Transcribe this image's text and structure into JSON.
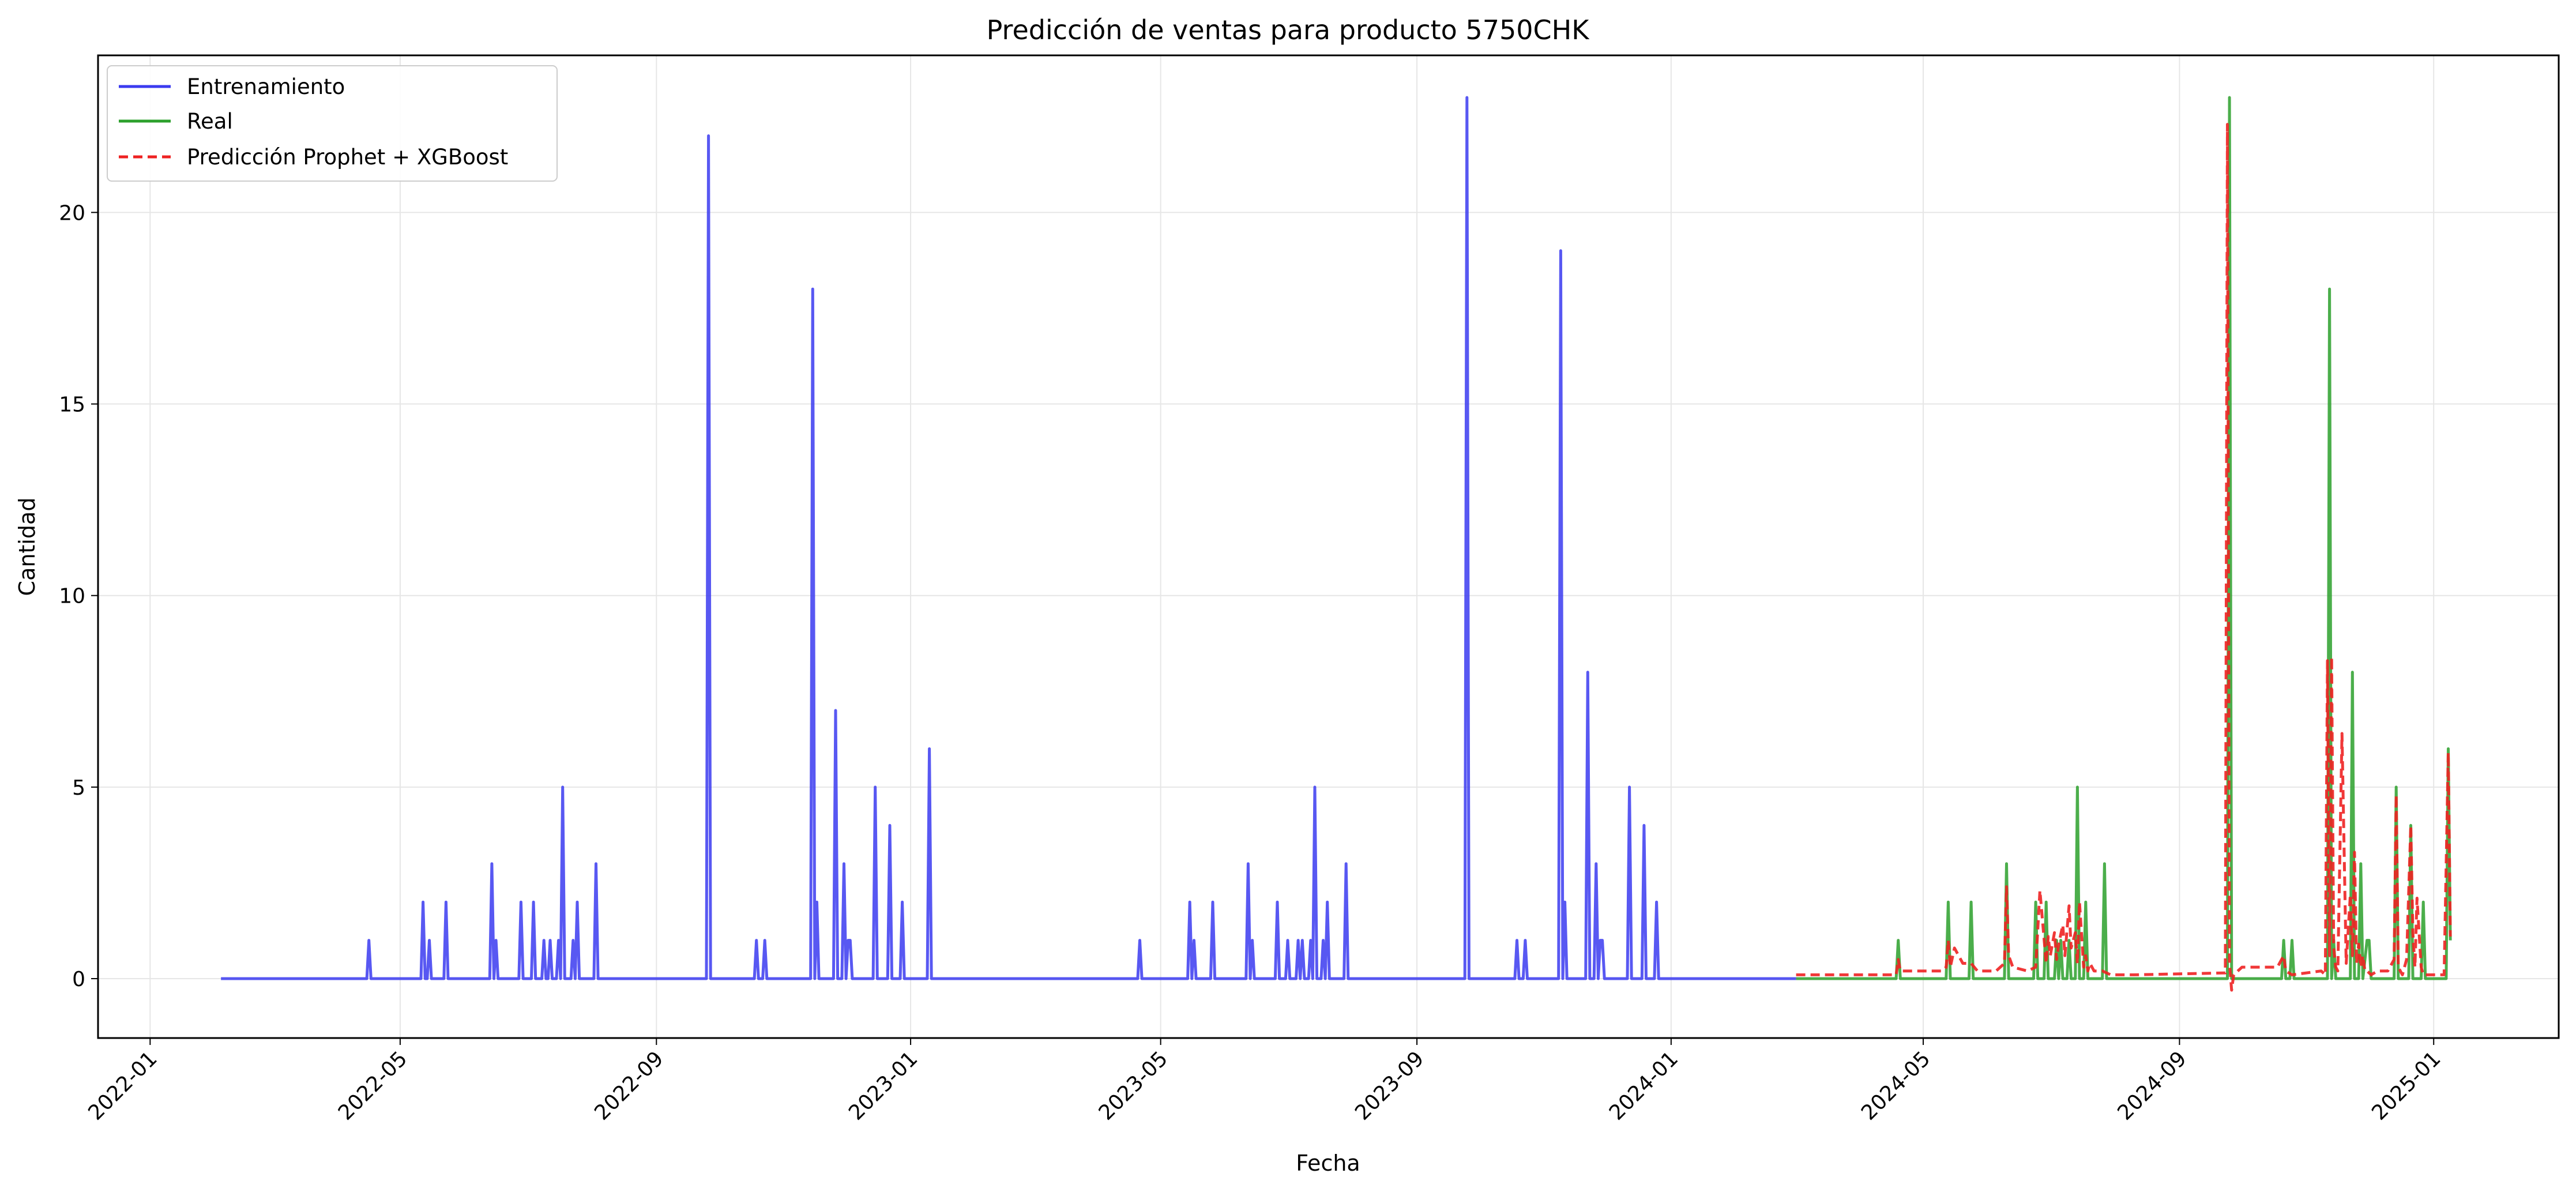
{
  "chart_data": {
    "type": "line",
    "title": "Predicción de ventas para producto 5750CHK",
    "xlabel": "Fecha",
    "ylabel": "Cantidad",
    "x_axis": "date",
    "xlim": [
      "2021-12-07",
      "2025-03-02"
    ],
    "ylim": [
      -1.55,
      24.1
    ],
    "x_ticks": [
      "2022-01",
      "2022-05",
      "2022-09",
      "2023-01",
      "2023-05",
      "2023-09",
      "2024-01",
      "2024-05",
      "2024-09",
      "2025-01"
    ],
    "y_ticks": [
      0,
      5,
      10,
      15,
      20
    ],
    "grid": true,
    "legend_position": "top-left",
    "series": [
      {
        "name": "Entrenamiento",
        "color": "#3b3bf0",
        "style": "solid",
        "x": [
          "2022-02-04",
          "2022-04-15",
          "2022-04-16",
          "2022-04-17",
          "2022-05-11",
          "2022-05-12",
          "2022-05-13",
          "2022-05-14",
          "2022-05-15",
          "2022-05-16",
          "2022-05-17",
          "2022-05-22",
          "2022-05-23",
          "2022-05-24",
          "2022-06-13",
          "2022-06-14",
          "2022-06-15",
          "2022-06-16",
          "2022-06-17",
          "2022-06-27",
          "2022-06-28",
          "2022-06-29",
          "2022-07-03",
          "2022-07-04",
          "2022-07-05",
          "2022-07-08",
          "2022-07-09",
          "2022-07-10",
          "2022-07-11",
          "2022-07-12",
          "2022-07-13",
          "2022-07-15",
          "2022-07-16",
          "2022-07-17",
          "2022-07-18",
          "2022-07-19",
          "2022-07-20",
          "2022-07-22",
          "2022-07-23",
          "2022-07-24",
          "2022-07-25",
          "2022-07-26",
          "2022-08-02",
          "2022-08-03",
          "2022-08-04",
          "2022-09-25",
          "2022-09-26",
          "2022-09-27",
          "2022-10-18",
          "2022-10-19",
          "2022-10-20",
          "2022-10-22",
          "2022-10-23",
          "2022-10-24",
          "2022-11-14",
          "2022-11-15",
          "2022-11-16",
          "2022-11-17",
          "2022-11-18",
          "2022-11-25",
          "2022-11-26",
          "2022-11-27",
          "2022-11-29",
          "2022-11-30",
          "2022-12-01",
          "2022-12-02",
          "2022-12-03",
          "2022-12-04",
          "2022-12-14",
          "2022-12-15",
          "2022-12-16",
          "2022-12-21",
          "2022-12-22",
          "2022-12-23",
          "2022-12-27",
          "2022-12-28",
          "2022-12-29",
          "2023-01-09",
          "2023-01-10",
          "2023-01-11",
          "2023-04-20",
          "2023-04-21",
          "2023-04-22",
          "2023-05-14",
          "2023-05-15",
          "2023-05-16",
          "2023-05-17",
          "2023-05-18",
          "2023-05-25",
          "2023-05-26",
          "2023-05-27",
          "2023-06-11",
          "2023-06-12",
          "2023-06-13",
          "2023-06-14",
          "2023-06-15",
          "2023-06-25",
          "2023-06-26",
          "2023-06-27",
          "2023-06-30",
          "2023-07-01",
          "2023-07-02",
          "2023-07-05",
          "2023-07-06",
          "2023-07-07",
          "2023-07-08",
          "2023-07-09",
          "2023-07-11",
          "2023-07-12",
          "2023-07-13",
          "2023-07-14",
          "2023-07-15",
          "2023-07-17",
          "2023-07-18",
          "2023-07-19",
          "2023-07-20",
          "2023-07-21",
          "2023-07-28",
          "2023-07-29",
          "2023-07-30",
          "2023-09-24",
          "2023-09-25",
          "2023-09-26",
          "2023-10-18",
          "2023-10-19",
          "2023-10-20",
          "2023-10-22",
          "2023-10-23",
          "2023-10-24",
          "2023-11-08",
          "2023-11-09",
          "2023-11-10",
          "2023-11-11",
          "2023-11-12",
          "2023-11-21",
          "2023-11-22",
          "2023-11-23",
          "2023-11-25",
          "2023-11-26",
          "2023-11-27",
          "2023-11-28",
          "2023-11-29",
          "2023-11-30",
          "2023-12-11",
          "2023-12-12",
          "2023-12-13",
          "2023-12-18",
          "2023-12-19",
          "2023-12-20",
          "2023-12-24",
          "2023-12-25",
          "2023-12-26",
          "2024-03-01"
        ],
        "y": [
          0,
          0,
          1,
          0,
          0,
          2,
          0,
          0,
          1,
          0,
          0,
          0,
          2,
          0,
          0,
          3,
          0,
          1,
          0,
          0,
          2,
          0,
          0,
          2,
          0,
          0,
          1,
          0,
          0,
          1,
          0,
          0,
          1,
          0,
          5,
          0,
          0,
          0,
          1,
          0,
          2,
          0,
          0,
          3,
          0,
          0,
          22,
          0,
          0,
          1,
          0,
          0,
          1,
          0,
          0,
          18,
          0,
          2,
          0,
          0,
          7,
          0,
          0,
          3,
          0,
          1,
          1,
          0,
          0,
          5,
          0,
          0,
          4,
          0,
          0,
          2,
          0,
          0,
          6,
          0,
          0,
          1,
          0,
          0,
          2,
          0,
          1,
          0,
          0,
          2,
          0,
          0,
          3,
          0,
          1,
          0,
          0,
          2,
          0,
          0,
          1,
          0,
          0,
          1,
          0,
          1,
          0,
          0,
          1,
          0,
          5,
          0,
          0,
          1,
          0,
          2,
          0,
          0,
          3,
          0,
          0,
          23,
          0,
          0,
          1,
          0,
          0,
          1,
          0,
          0,
          19,
          0,
          2,
          0,
          0,
          8,
          0,
          0,
          3,
          0,
          1,
          1,
          0,
          0,
          5,
          0,
          0,
          4,
          0,
          0,
          2,
          0,
          0
        ]
      },
      {
        "name": "Real",
        "color": "#2ca02c",
        "style": "solid",
        "x": [
          "2024-03-01",
          "2024-04-18",
          "2024-04-19",
          "2024-04-20",
          "2024-05-12",
          "2024-05-13",
          "2024-05-14",
          "2024-05-23",
          "2024-05-24",
          "2024-05-25",
          "2024-06-09",
          "2024-06-10",
          "2024-06-11",
          "2024-06-23",
          "2024-06-24",
          "2024-06-25",
          "2024-06-28",
          "2024-06-29",
          "2024-06-30",
          "2024-07-03",
          "2024-07-04",
          "2024-07-05",
          "2024-07-06",
          "2024-07-07",
          "2024-07-09",
          "2024-07-10",
          "2024-07-11",
          "2024-07-13",
          "2024-07-14",
          "2024-07-15",
          "2024-07-17",
          "2024-07-18",
          "2024-07-19",
          "2024-07-26",
          "2024-07-27",
          "2024-07-28",
          "2024-09-24",
          "2024-09-25",
          "2024-09-26",
          "2024-10-20",
          "2024-10-21",
          "2024-10-22",
          "2024-10-24",
          "2024-10-25",
          "2024-10-26",
          "2024-11-11",
          "2024-11-12",
          "2024-11-13",
          "2024-11-14",
          "2024-11-15",
          "2024-11-22",
          "2024-11-23",
          "2024-11-24",
          "2024-11-26",
          "2024-11-27",
          "2024-11-28",
          "2024-11-30",
          "2024-12-01",
          "2024-12-02",
          "2024-12-13",
          "2024-12-14",
          "2024-12-15",
          "2024-12-20",
          "2024-12-21",
          "2024-12-22",
          "2024-12-26",
          "2024-12-27",
          "2024-12-28",
          "2025-01-07",
          "2025-01-08",
          "2025-01-09"
        ],
        "y": [
          0,
          0,
          1,
          0,
          0,
          2,
          0,
          0,
          2,
          0,
          0,
          3,
          0,
          0,
          2,
          0,
          0,
          2,
          0,
          0,
          1,
          0,
          1,
          0,
          0,
          1,
          0,
          0,
          5,
          0,
          0,
          2,
          0,
          0,
          3,
          0,
          0,
          23,
          0,
          0,
          1,
          0,
          0,
          1,
          0,
          0,
          18,
          0,
          1,
          0,
          0,
          8,
          0,
          0,
          3,
          0,
          1,
          1,
          0,
          0,
          5,
          0,
          0,
          4,
          0,
          0,
          2,
          0,
          0,
          6,
          1
        ]
      },
      {
        "name": "Predicción Prophet + XGBoost",
        "color": "#ee2222",
        "style": "dashed",
        "x": [
          "2024-03-01",
          "2024-04-18",
          "2024-04-19",
          "2024-04-20",
          "2024-05-10",
          "2024-05-12",
          "2024-05-13",
          "2024-05-14",
          "2024-05-16",
          "2024-05-20",
          "2024-05-24",
          "2024-05-27",
          "2024-06-05",
          "2024-06-09",
          "2024-06-10",
          "2024-06-11",
          "2024-06-13",
          "2024-06-20",
          "2024-06-24",
          "2024-06-26",
          "2024-06-29",
          "2024-06-30",
          "2024-07-01",
          "2024-07-03",
          "2024-07-04",
          "2024-07-05",
          "2024-07-07",
          "2024-07-08",
          "2024-07-10",
          "2024-07-11",
          "2024-07-13",
          "2024-07-14",
          "2024-07-15",
          "2024-07-17",
          "2024-07-18",
          "2024-07-19",
          "2024-07-20",
          "2024-07-22",
          "2024-07-26",
          "2024-07-30",
          "2024-08-10",
          "2024-09-23",
          "2024-09-24",
          "2024-09-25",
          "2024-09-26",
          "2024-09-27",
          "2024-10-01",
          "2024-10-04",
          "2024-10-18",
          "2024-10-21",
          "2024-10-22",
          "2024-10-25",
          "2024-11-08",
          "2024-11-10",
          "2024-11-11",
          "2024-11-12",
          "2024-11-13",
          "2024-11-14",
          "2024-11-15",
          "2024-11-16",
          "2024-11-18",
          "2024-11-20",
          "2024-11-22",
          "2024-11-23",
          "2024-11-24",
          "2024-11-25",
          "2024-11-26",
          "2024-11-27",
          "2024-11-28",
          "2024-11-29",
          "2024-11-30",
          "2024-12-02",
          "2024-12-05",
          "2024-12-10",
          "2024-12-13",
          "2024-12-14",
          "2024-12-15",
          "2024-12-17",
          "2024-12-19",
          "2024-12-21",
          "2024-12-22",
          "2024-12-23",
          "2024-12-24",
          "2024-12-26",
          "2024-12-27",
          "2024-12-28",
          "2024-12-30",
          "2025-01-06",
          "2025-01-08",
          "2025-01-09"
        ],
        "y": [
          0.1,
          0.1,
          0.5,
          0.2,
          0.2,
          0.3,
          1.0,
          0.3,
          0.8,
          0.4,
          0.4,
          0.2,
          0.2,
          0.4,
          2.4,
          0.6,
          0.3,
          0.2,
          0.3,
          2.3,
          0.4,
          1.1,
          0.6,
          1.2,
          0.5,
          0.9,
          1.4,
          0.6,
          1.9,
          0.8,
          1.2,
          0.4,
          2.0,
          0.3,
          0.6,
          0.2,
          0.4,
          0.2,
          0.2,
          0.1,
          0.1,
          0.15,
          22.3,
          0.4,
          -0.3,
          0.1,
          0.3,
          0.3,
          0.3,
          0.6,
          0.2,
          0.1,
          0.2,
          0.1,
          8.3,
          0.6,
          8.4,
          0.8,
          0.3,
          0.2,
          6.4,
          0.4,
          2.2,
          0.6,
          3.3,
          0.4,
          0.9,
          0.3,
          0.6,
          0.2,
          0.2,
          0.1,
          0.2,
          0.2,
          0.5,
          4.8,
          0.3,
          0.1,
          0.5,
          4.0,
          1.2,
          0.3,
          2.1,
          0.3,
          0.1,
          0.1,
          0.1,
          0.1,
          5.9,
          1.1
        ]
      }
    ]
  }
}
